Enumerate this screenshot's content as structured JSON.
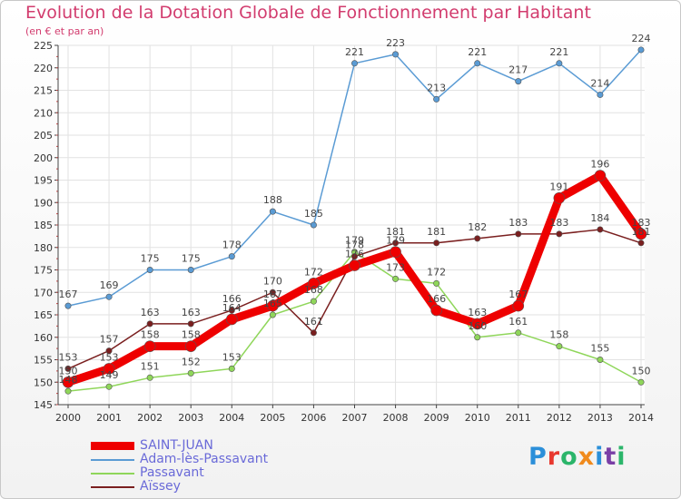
{
  "title": "Evolution de la Dotation Globale de Fonctionnement par Habitant",
  "subtitle": "(en € et par an)",
  "brand": {
    "name": "Proxiti",
    "letter_colors": [
      "#2b8fd9",
      "#e8382e",
      "#2bb56a",
      "#f08a1c",
      "#2b8fd9",
      "#7a3fa6",
      "#2bb56a"
    ]
  },
  "chart_data": {
    "type": "line",
    "x": [
      "2000",
      "2001",
      "2002",
      "2003",
      "2004",
      "2005",
      "2006",
      "2007",
      "2008",
      "2009",
      "2010",
      "2011",
      "2012",
      "2013",
      "2014"
    ],
    "ylim": [
      145,
      225
    ],
    "yticks": [
      "145",
      "150",
      "155",
      "160",
      "165",
      "170",
      "175",
      "180",
      "185",
      "190",
      "195",
      "200",
      "205",
      "210",
      "215",
      "220",
      "225"
    ],
    "grid": true,
    "legend": "bottom-left",
    "series": [
      {
        "name": "Adam-lès-Passavant",
        "color": "#5a9bd4",
        "values": [
          167,
          169,
          175,
          175,
          178,
          188,
          185,
          221,
          223,
          213,
          221,
          217,
          221,
          214,
          224
        ]
      },
      {
        "name": "Passavant",
        "color": "#8fd65a",
        "values": [
          148,
          149,
          151,
          152,
          153,
          165,
          168,
          179,
          173,
          172,
          160,
          161,
          158,
          155,
          150
        ]
      },
      {
        "name": "Aïssey",
        "color": "#7a1f1f",
        "values": [
          153,
          157,
          163,
          163,
          166,
          170,
          161,
          178,
          181,
          181,
          182,
          183,
          183,
          184,
          181
        ]
      },
      {
        "name": "SAINT-JUAN",
        "color": "#ee0000",
        "values": [
          150,
          153,
          158,
          158,
          164,
          167,
          172,
          176,
          179,
          166,
          163,
          167,
          191,
          196,
          183
        ]
      }
    ]
  }
}
